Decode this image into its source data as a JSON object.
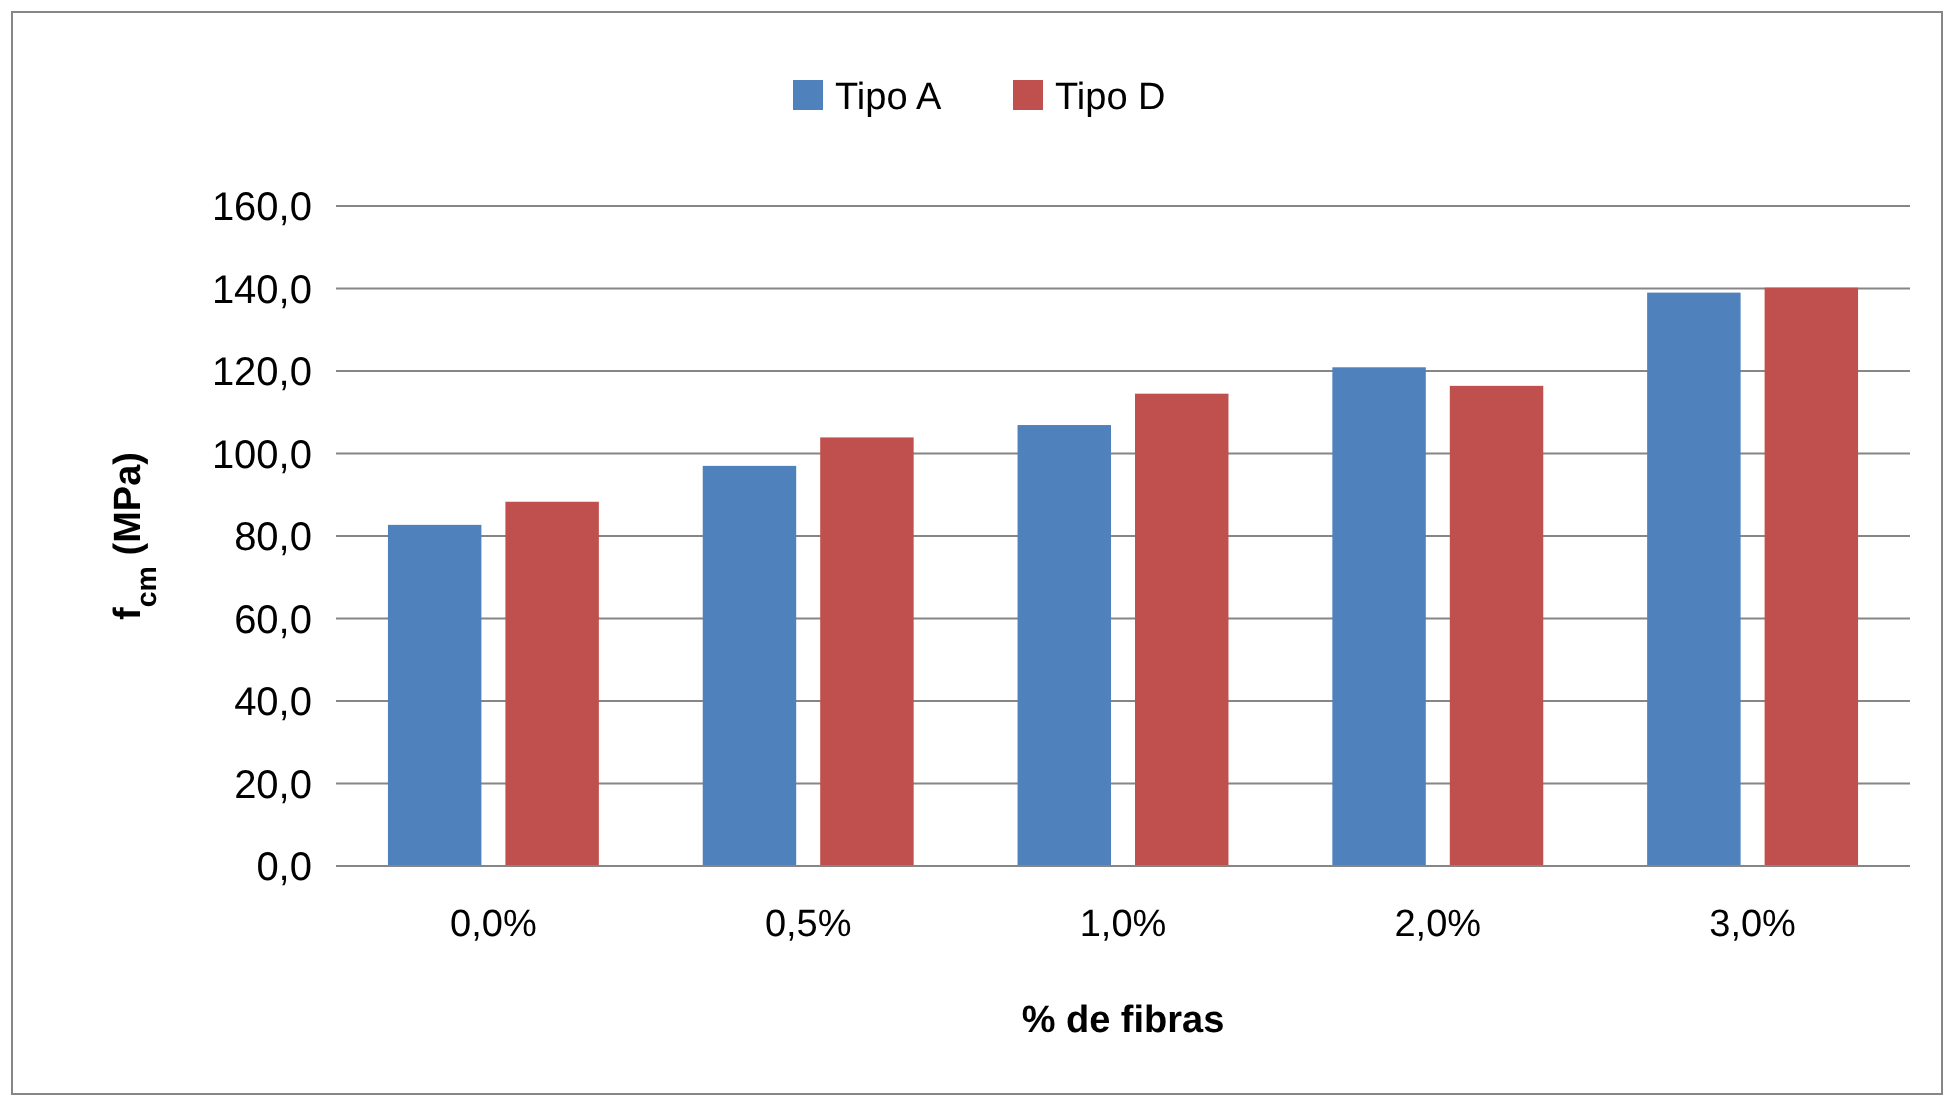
{
  "chart_data": {
    "type": "bar",
    "xlabel": "% de fibras",
    "ylabel": "f$_{cm}$ (MPa)",
    "categories": [
      "0,0%",
      "0,5%",
      "1,0%",
      "2,0%",
      "3,0%"
    ],
    "series": [
      {
        "name": "Tipo A",
        "color": "#4f81bd",
        "values": [
          82.7,
          97.0,
          106.9,
          120.9,
          139.0
        ]
      },
      {
        "name": "Tipo D",
        "color": "#c0504d",
        "values": [
          88.3,
          103.9,
          114.5,
          116.4,
          140.2
        ]
      }
    ],
    "ylim": [
      0,
      160
    ],
    "yticks": [
      {
        "value": 0,
        "label": "0,0"
      },
      {
        "value": 20,
        "label": "20,0"
      },
      {
        "value": 40,
        "label": "40,0"
      },
      {
        "value": 60,
        "label": "60,0"
      },
      {
        "value": 80,
        "label": "80,0"
      },
      {
        "value": 100,
        "label": "100,0"
      },
      {
        "value": 120,
        "label": "120,0"
      },
      {
        "value": 140,
        "label": "140,0"
      },
      {
        "value": 160,
        "label": "160,0"
      }
    ],
    "grid": "y",
    "legend": "top"
  }
}
